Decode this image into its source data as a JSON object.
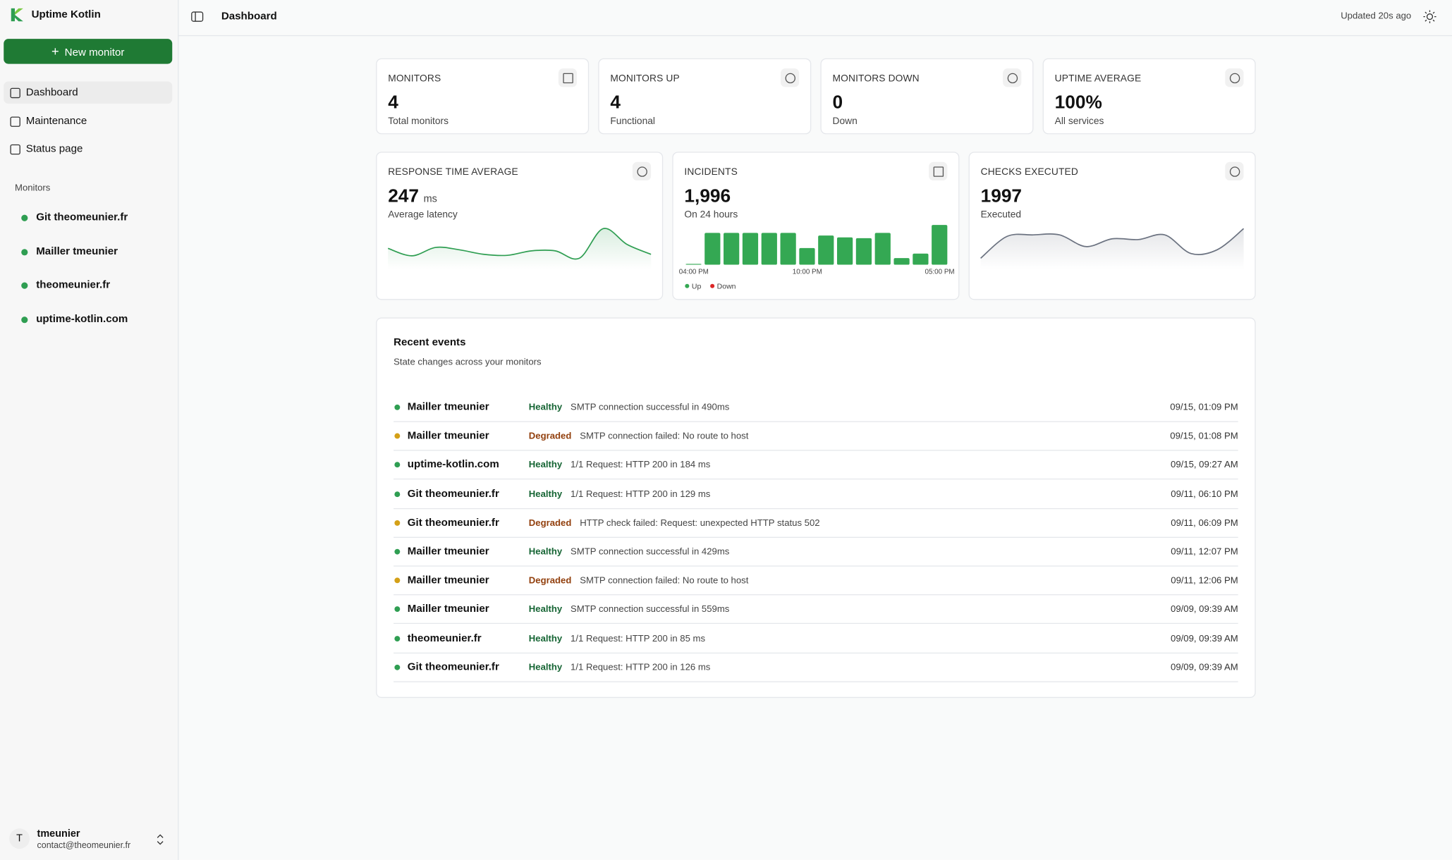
{
  "sidebar": {
    "brand": "Uptime Kotlin",
    "new_monitor": "New monitor",
    "nav": [
      "Dashboard",
      "Maintenance",
      "Status page"
    ],
    "monitors_heading": "Monitors",
    "monitors": [
      "Git theomeunier.fr",
      "Mailler tmeunier",
      "theomeunier.fr",
      "uptime-kotlin.com"
    ],
    "user": {
      "initial": "T",
      "name": "tmeunier",
      "email": "contact@theomeunier.fr"
    }
  },
  "header": {
    "title": "Dashboard",
    "updated": "Updated 20s ago"
  },
  "stats": [
    {
      "label": "MONITORS",
      "value": "4",
      "caption": "Total monitors"
    },
    {
      "label": "MONITORS UP",
      "value": "4",
      "caption": "Functional"
    },
    {
      "label": "MONITORS DOWN",
      "value": "0",
      "caption": "Down"
    },
    {
      "label": "UPTIME AVERAGE",
      "value": "100%",
      "caption": "All services"
    }
  ],
  "cards": [
    {
      "label": "RESPONSE TIME AVERAGE",
      "value": "247",
      "unit": "ms",
      "caption": "Average latency"
    },
    {
      "label": "INCIDENTS",
      "value": "1,996",
      "caption": "On 24 hours"
    },
    {
      "label": "CHECKS EXECUTED",
      "value": "1997",
      "caption": "Executed"
    }
  ],
  "chart_data": [
    {
      "type": "line",
      "color": "#2f9e52",
      "values": [
        250,
        235,
        252,
        247,
        238,
        236,
        245,
        245,
        230,
        290,
        258,
        238
      ]
    },
    {
      "type": "bar",
      "categories": [
        "04:00 PM",
        null,
        null,
        null,
        null,
        null,
        "10:00 PM",
        null,
        null,
        null,
        null,
        null,
        null,
        "05:00 PM"
      ],
      "series": [
        {
          "name": "Up",
          "color": "#34a853",
          "values": [
            3,
            120,
            120,
            120,
            120,
            120,
            63,
            110,
            103,
            100,
            120,
            25,
            42,
            150
          ]
        },
        {
          "name": "Down",
          "color": "#dc2626",
          "values": [
            0,
            0,
            0,
            0,
            0,
            0,
            0,
            0,
            0,
            0,
            0,
            0,
            0,
            0
          ]
        }
      ]
    },
    {
      "type": "line",
      "color": "#6b7280",
      "values": [
        140,
        168,
        170,
        170,
        155,
        165,
        164,
        170,
        146,
        151,
        178
      ]
    }
  ],
  "events": {
    "title": "Recent events",
    "subtitle": "State changes across your monitors",
    "rows": [
      {
        "name": "Mailler tmeunier",
        "status": "Healthy",
        "message": "SMTP connection successful in 490ms",
        "time": "09/15, 01:09 PM"
      },
      {
        "name": "Mailler tmeunier",
        "status": "Degraded",
        "message": "SMTP connection failed: No route to host",
        "time": "09/15, 01:08 PM"
      },
      {
        "name": "uptime-kotlin.com",
        "status": "Healthy",
        "message": "1/1 Request: HTTP 200 in 184 ms",
        "time": "09/15, 09:27 AM"
      },
      {
        "name": "Git theomeunier.fr",
        "status": "Healthy",
        "message": "1/1 Request: HTTP 200 in 129 ms",
        "time": "09/11, 06:10 PM"
      },
      {
        "name": "Git theomeunier.fr",
        "status": "Degraded",
        "message": "HTTP check failed: Request: unexpected HTTP status 502",
        "time": "09/11, 06:09 PM"
      },
      {
        "name": "Mailler tmeunier",
        "status": "Healthy",
        "message": "SMTP connection successful in 429ms",
        "time": "09/11, 12:07 PM"
      },
      {
        "name": "Mailler tmeunier",
        "status": "Degraded",
        "message": "SMTP connection failed: No route to host",
        "time": "09/11, 12:06 PM"
      },
      {
        "name": "Mailler tmeunier",
        "status": "Healthy",
        "message": "SMTP connection successful in 559ms",
        "time": "09/09, 09:39 AM"
      },
      {
        "name": "theomeunier.fr",
        "status": "Healthy",
        "message": "1/1 Request: HTTP 200 in 85 ms",
        "time": "09/09, 09:39 AM"
      },
      {
        "name": "Git theomeunier.fr",
        "status": "Healthy",
        "message": "1/1 Request: HTTP 200 in 126 ms",
        "time": "09/09, 09:39 AM"
      }
    ]
  }
}
